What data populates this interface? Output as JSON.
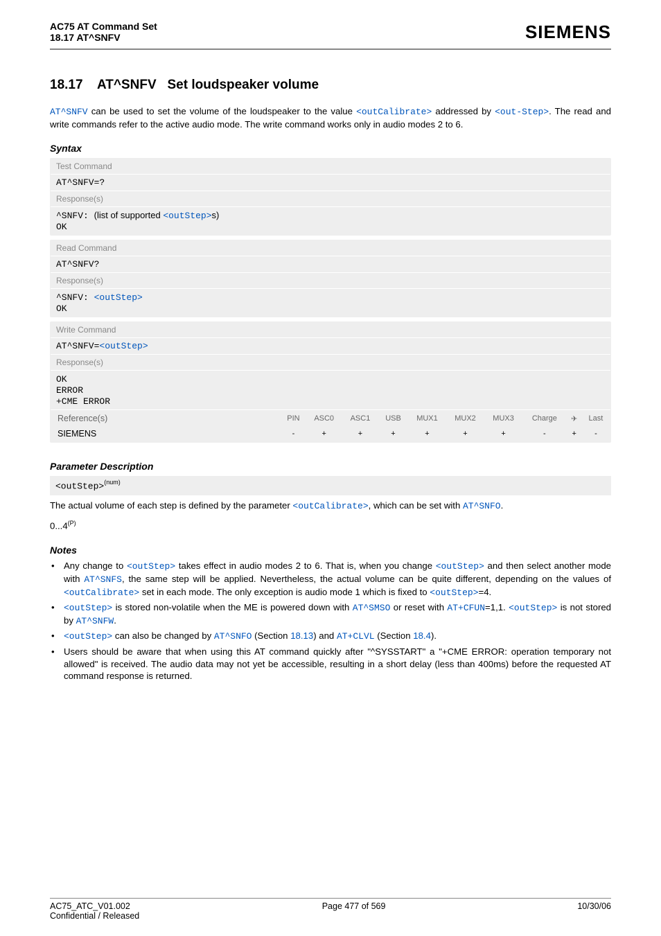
{
  "header": {
    "doc_title": "AC75 AT Command Set",
    "doc_section": "18.17 AT^SNFV",
    "brand": "SIEMENS"
  },
  "section": {
    "number": "18.17",
    "cmd": "AT^SNFV",
    "title": "Set loudspeaker volume"
  },
  "intro": {
    "cmd_link": "AT^SNFV",
    "text1": " can be used to set the volume of the loudspeaker to the value ",
    "link2": "<outCalibrate>",
    "text2": " addressed by ",
    "link3": "<out-Step>",
    "text3": ". The read and write commands refer to the active audio mode. The write command works only in audio modes 2 to 6."
  },
  "syntax_label": "Syntax",
  "syntax_blocks": [
    {
      "label": "Test Command",
      "cmd": "AT^SNFV=?",
      "resp_label": "Response(s)",
      "resp_prefix": "^SNFV: ",
      "resp_text": "(list of supported ",
      "resp_link": "<outStep>",
      "resp_suffix": "s)",
      "ok": "OK"
    },
    {
      "label": "Read Command",
      "cmd": "AT^SNFV?",
      "resp_label": "Response(s)",
      "resp_prefix": "^SNFV: ",
      "resp_link": "<outStep>",
      "ok": "OK"
    },
    {
      "label": "Write Command",
      "cmd_prefix": "AT^SNFV=",
      "cmd_link": "<outStep>",
      "resp_label": "Response(s)",
      "lines": [
        "OK",
        "ERROR",
        "+CME ERROR"
      ]
    }
  ],
  "ref": {
    "label": "Reference(s)",
    "vendor": "SIEMENS",
    "cols": [
      "PIN",
      "ASC0",
      "ASC1",
      "USB",
      "MUX1",
      "MUX2",
      "MUX3",
      "Charge",
      "✈",
      "Last"
    ],
    "vals": [
      "-",
      "+",
      "+",
      "+",
      "+",
      "+",
      "+",
      "-",
      "+",
      "-"
    ]
  },
  "param_label": "Parameter Description",
  "param": {
    "name": "<outStep>",
    "sup": "(num)",
    "text1": "The actual volume of each step is defined by the parameter ",
    "link1": "<outCalibrate>",
    "text2": ", which can be set with ",
    "link2": "AT^SNFO",
    "text3": ".",
    "range": "0...4",
    "range_sup": "(P)"
  },
  "notes_label": "Notes",
  "notes": [
    {
      "parts": [
        {
          "t": "Any change to "
        },
        {
          "l": "<outStep>"
        },
        {
          "t": " takes effect in audio modes 2 to 6. That is, when you change "
        },
        {
          "l": "<outStep>"
        },
        {
          "t": " and then select another mode with "
        },
        {
          "l": "AT^SNFS"
        },
        {
          "t": ", the same step will be applied. Nevertheless, the actual volume can be quite different, depending on the values of "
        },
        {
          "l": "<outCalibrate>"
        },
        {
          "t": " set in each mode. The only exception is audio mode 1 which is fixed to "
        },
        {
          "l": "<outStep>"
        },
        {
          "t": "=4."
        }
      ]
    },
    {
      "parts": [
        {
          "l": "<outStep>"
        },
        {
          "t": " is stored non-volatile when the ME is powered down with "
        },
        {
          "l": "AT^SMSO"
        },
        {
          "t": " or reset with "
        },
        {
          "l": "AT+CFUN"
        },
        {
          "t": "=1,1. "
        },
        {
          "l": "<outStep>"
        },
        {
          "t": " is not stored by "
        },
        {
          "l": "AT^SNFW"
        },
        {
          "t": "."
        }
      ]
    },
    {
      "parts": [
        {
          "l": "<outStep>"
        },
        {
          "t": " can also be changed by "
        },
        {
          "l": "AT^SNFO"
        },
        {
          "t": " (Section "
        },
        {
          "lnum": "18.13"
        },
        {
          "t": ") and "
        },
        {
          "l": "AT+CLVL"
        },
        {
          "t": " (Section "
        },
        {
          "lnum": "18.4"
        },
        {
          "t": ")."
        }
      ]
    },
    {
      "parts": [
        {
          "t": "Users should be aware that when using this AT command quickly after \"^SYSSTART\" a \"+CME ERROR: operation temporary not allowed\" is received. The audio data may not yet be accessible, resulting in a short delay (less than 400ms) before the requested AT command response is returned."
        }
      ]
    }
  ],
  "footer": {
    "left": "AC75_ATC_V01.002",
    "left2": "Confidential / Released",
    "center": "Page 477 of 569",
    "right": "10/30/06"
  },
  "colors": {
    "link": "#0055bb",
    "grey_bg": "#eeeeee",
    "label_grey": "#888888"
  }
}
